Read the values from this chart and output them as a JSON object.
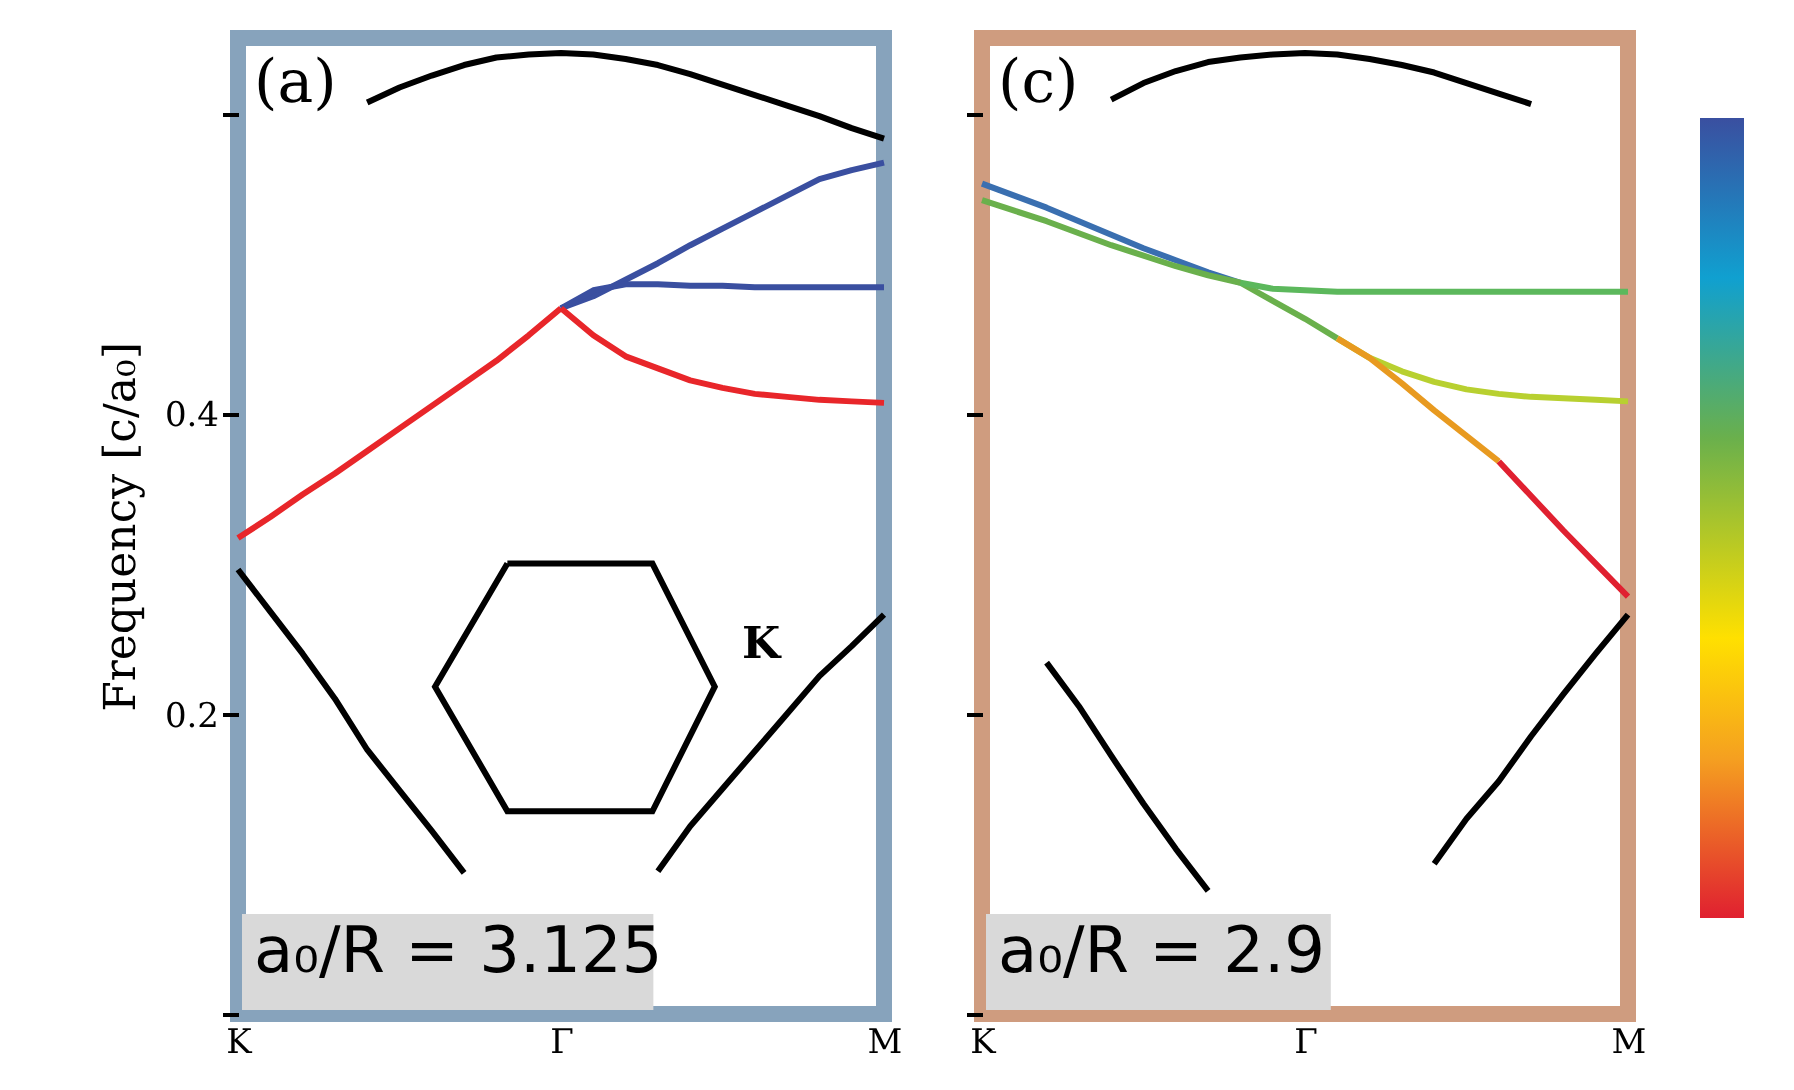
{
  "chart_data": [
    {
      "type": "line",
      "ylabel": "Frequency [c/a₀]",
      "ylim": [
        0,
        0.65
      ],
      "categories": [
        "K",
        null,
        null,
        null,
        null,
        null,
        null,
        null,
        null,
        null,
        "Γ",
        null,
        null,
        null,
        null,
        null,
        null,
        null,
        null,
        null,
        "M"
      ],
      "yticks": [
        {
          "value": 0,
          "label": null
        },
        0.2,
        0.4,
        {
          "value": 0.6,
          "label": null
        }
      ],
      "grid": false,
      "legend": false,
      "annotations": [
        "(a)",
        "a₀/R = 3.125",
        "K"
      ],
      "series": [
        {
          "color": "#000000",
          "values": [
            null,
            null,
            null,
            null,
            0.607,
            0.617,
            0.625,
            0.632,
            0.637,
            0.639,
            0.64,
            0.639,
            0.636,
            0.632,
            0.626,
            0.619,
            0.612,
            0.605,
            0.598,
            0.59,
            0.583
          ]
        },
        {
          "color": "#e8262a",
          "values": [
            0.317,
            0.331,
            0.346,
            0.36,
            0.375,
            0.39,
            0.405,
            0.42,
            0.435,
            0.452,
            0.47,
            null,
            null,
            null,
            null,
            null,
            null,
            null,
            null,
            null,
            null
          ]
        },
        {
          "color": "#3a4fa0",
          "values": [
            null,
            null,
            null,
            null,
            null,
            null,
            null,
            null,
            null,
            null,
            0.47,
            0.478,
            0.489,
            0.5,
            0.512,
            0.523,
            0.534,
            0.545,
            0.556,
            0.562,
            0.567
          ]
        },
        {
          "color": "#3a4fa0",
          "values": [
            null,
            null,
            null,
            null,
            null,
            null,
            null,
            null,
            null,
            null,
            0.47,
            0.482,
            0.486,
            0.486,
            0.485,
            0.485,
            0.484,
            0.484,
            0.484,
            0.484,
            0.484
          ]
        },
        {
          "color": "#e8262a",
          "values": [
            null,
            null,
            null,
            null,
            null,
            null,
            null,
            null,
            null,
            null,
            0.47,
            0.452,
            0.438,
            0.43,
            0.422,
            0.417,
            0.413,
            0.411,
            0.409,
            0.408,
            0.407
          ]
        },
        {
          "color": "#000000",
          "values": [
            0.296,
            0.268,
            0.24,
            0.21,
            0.176,
            0.149,
            0.122,
            0.094,
            null,
            null,
            null,
            null,
            null,
            null,
            null,
            null,
            null,
            null,
            null,
            null,
            null
          ]
        },
        {
          "color": "#000000",
          "values": [
            null,
            null,
            null,
            null,
            null,
            null,
            null,
            null,
            null,
            null,
            null,
            null,
            null,
            0.095,
            0.125,
            0.15,
            0.175,
            0.2,
            0.225,
            0.245,
            0.266
          ]
        }
      ]
    },
    {
      "type": "line",
      "ylim": [
        0,
        0.65
      ],
      "tick_labels": "x",
      "categories": [
        "K",
        null,
        null,
        null,
        null,
        null,
        null,
        null,
        null,
        null,
        "Γ",
        null,
        null,
        null,
        null,
        null,
        null,
        null,
        null,
        null,
        "M"
      ],
      "yticks": [
        0,
        0.2,
        0.4,
        0.6
      ],
      "grid": false,
      "legend": false,
      "annotations": [
        "(c)",
        "a₀/R = 2.9"
      ],
      "series": [
        {
          "color": "#000000",
          "values": [
            null,
            null,
            null,
            null,
            0.609,
            0.62,
            0.628,
            0.634,
            0.637,
            0.639,
            0.64,
            0.639,
            0.636,
            0.632,
            0.627,
            0.62,
            0.613,
            0.606,
            null,
            null,
            null
          ]
        },
        {
          "color": "#3a6fb0",
          "values": [
            0.553,
            0.545,
            0.537,
            0.528,
            0.519,
            0.51,
            0.502,
            0.494,
            0.487,
            null,
            null,
            null,
            null,
            null,
            null,
            null,
            null,
            null,
            null,
            null,
            null
          ]
        },
        {
          "color": "#6ab04c",
          "values": [
            0.542,
            0.535,
            0.528,
            0.52,
            0.512,
            0.505,
            0.498,
            0.492,
            0.487,
            0.475,
            0.463,
            0.45,
            null,
            null,
            null,
            null,
            null,
            null,
            null,
            null,
            null
          ]
        },
        {
          "color": "#5cb85c",
          "values": [
            null,
            null,
            null,
            null,
            null,
            null,
            null,
            null,
            0.487,
            0.483,
            0.482,
            0.481,
            0.481,
            0.481,
            0.481,
            0.481,
            0.481,
            0.481,
            0.481,
            0.481,
            0.481
          ]
        },
        {
          "color": "#b8d030",
          "values": [
            null,
            null,
            null,
            null,
            null,
            null,
            null,
            null,
            null,
            null,
            null,
            0.45,
            0.437,
            0.428,
            0.421,
            0.416,
            0.413,
            0.411,
            0.41,
            0.409,
            0.408
          ]
        },
        {
          "color": "#e89a20",
          "values": [
            null,
            null,
            null,
            null,
            null,
            null,
            null,
            null,
            null,
            null,
            null,
            0.45,
            0.437,
            0.42,
            0.402,
            0.385,
            0.368,
            null,
            null,
            null,
            null
          ]
        },
        {
          "color": "#e02030",
          "values": [
            null,
            null,
            null,
            null,
            null,
            null,
            null,
            null,
            null,
            null,
            null,
            null,
            null,
            null,
            null,
            null,
            0.368,
            0.345,
            0.322,
            0.3,
            0.278
          ]
        },
        {
          "color": "#000000",
          "values": [
            null,
            null,
            0.234,
            0.205,
            0.172,
            0.14,
            0.11,
            0.082,
            null,
            null,
            null,
            null,
            null,
            null,
            null,
            null,
            null,
            null,
            null,
            null,
            null
          ]
        },
        {
          "color": "#000000",
          "values": [
            null,
            null,
            null,
            null,
            null,
            null,
            null,
            null,
            null,
            null,
            null,
            null,
            null,
            null,
            0.1,
            0.13,
            0.155,
            0.185,
            0.213,
            0.24,
            0.266
          ]
        }
      ]
    }
  ]
}
